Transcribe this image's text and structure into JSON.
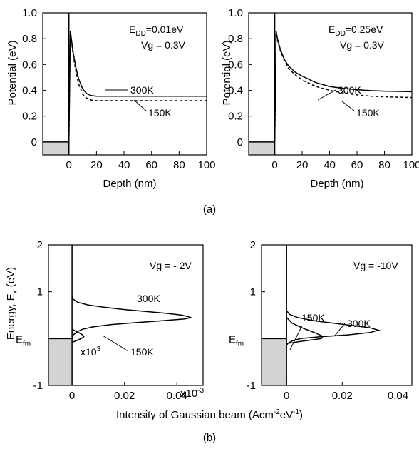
{
  "figure": {
    "caption_a": "(a)",
    "caption_b": "(b)",
    "xlabel_b": "Intensity of Gaussian beam (Acm",
    "xlabel_b_sup1": "-2",
    "xlabel_b_mid": "eV",
    "xlabel_b_sup2": "-1",
    "xlabel_b_end": ")"
  },
  "chart_data": [
    {
      "id": "a-left",
      "type": "line",
      "xlabel": "Depth (nm)",
      "ylabel": "Potential (eV)",
      "xlim": [
        -19,
        100
      ],
      "ylim": [
        -0.1,
        1.0
      ],
      "xticks": [
        0,
        20,
        40,
        60,
        80,
        100
      ],
      "yticks": [
        0,
        0.2,
        0.4,
        0.6,
        0.8,
        1.0
      ],
      "ytick_labels": [
        "0",
        "0.2",
        "0.4",
        "0.6",
        "0.8",
        "1.0"
      ],
      "annotation_1": {
        "main": "E",
        "sub": "DD",
        "rest": "=0.01eV"
      },
      "annotation_2": "Vg = 0.3V",
      "series": [
        {
          "name": "300K",
          "style": "solid",
          "x": [
            0,
            1,
            2,
            3,
            5,
            7,
            10,
            13,
            16,
            20,
            100
          ],
          "y": [
            0.0,
            0.86,
            0.78,
            0.7,
            0.58,
            0.49,
            0.41,
            0.375,
            0.36,
            0.355,
            0.355
          ]
        },
        {
          "name": "150K",
          "style": "dashed",
          "x": [
            0,
            1,
            2,
            3,
            5,
            7,
            10,
            13,
            16,
            20,
            100
          ],
          "y": [
            0.0,
            0.86,
            0.77,
            0.68,
            0.55,
            0.45,
            0.37,
            0.34,
            0.325,
            0.32,
            0.32
          ]
        }
      ]
    },
    {
      "id": "a-right",
      "type": "line",
      "xlabel": "Depth (nm)",
      "ylabel": "Potential (eV)",
      "xlim": [
        -19,
        100
      ],
      "ylim": [
        -0.1,
        1.0
      ],
      "xticks": [
        0,
        20,
        40,
        60,
        80,
        100
      ],
      "yticks": [
        0,
        0.2,
        0.4,
        0.6,
        0.8,
        1.0
      ],
      "ytick_labels": [
        "0",
        "0.2",
        "0.4",
        "0.6",
        "0.8",
        "1.0"
      ],
      "annotation_1": {
        "main": "E",
        "sub": "DD",
        "rest": "=0.25eV"
      },
      "annotation_2": "Vg = 0.3V",
      "series": [
        {
          "name": "300K",
          "style": "solid",
          "x": [
            0,
            1,
            2,
            4,
            7,
            10,
            15,
            20,
            30,
            40,
            50,
            60,
            70,
            80,
            90,
            100
          ],
          "y": [
            0.0,
            0.86,
            0.8,
            0.72,
            0.64,
            0.59,
            0.54,
            0.51,
            0.46,
            0.43,
            0.415,
            0.405,
            0.398,
            0.394,
            0.392,
            0.39
          ]
        },
        {
          "name": "150K",
          "style": "dashed",
          "x": [
            0,
            1,
            2,
            4,
            7,
            10,
            15,
            20,
            30,
            40,
            50,
            60,
            70,
            80,
            90,
            100
          ],
          "y": [
            0.0,
            0.86,
            0.79,
            0.71,
            0.63,
            0.57,
            0.52,
            0.48,
            0.43,
            0.4,
            0.38,
            0.365,
            0.355,
            0.35,
            0.347,
            0.345
          ]
        }
      ]
    },
    {
      "id": "b-left",
      "type": "line",
      "xlabel": "",
      "ylabel": "Energy, E",
      "ylabel_sub": "x",
      "ylabel_end": " (eV)",
      "xlim": [
        -0.009,
        0.05
      ],
      "ylim": [
        -1,
        2
      ],
      "xticks": [
        0,
        0.02,
        0.04
      ],
      "xtick_labels": [
        "0",
        "0.02",
        "0.04"
      ],
      "x_multiplier": "x10",
      "x_multiplier_sup": "-3",
      "yticks": [
        -1,
        1,
        2
      ],
      "ytick_labels": [
        "-1",
        "1",
        "2"
      ],
      "efm_value": 0,
      "efm": {
        "main": "E",
        "sub": "fm"
      },
      "annotation_vg": "Vg = - 2V",
      "annotation_x10": {
        "main": "x10",
        "sup": "3"
      },
      "series": [
        {
          "name": "300K",
          "style": "solid",
          "x": [
            0,
            0.0005,
            0.002,
            0.006,
            0.012,
            0.02,
            0.028,
            0.036,
            0.042,
            0.0455,
            0.043,
            0.034,
            0.024,
            0.015,
            0.008,
            0.004,
            0.002,
            0.0005,
            0
          ],
          "y": [
            0.9,
            0.84,
            0.78,
            0.72,
            0.67,
            0.62,
            0.58,
            0.54,
            0.5,
            0.45,
            0.42,
            0.38,
            0.34,
            0.3,
            0.25,
            0.2,
            0.15,
            0.08,
            0.0
          ]
        },
        {
          "name": "150K",
          "style": "solid",
          "x": [
            0,
            0.001,
            0.0025,
            0.004,
            0.0045,
            0.0035,
            0.0018,
            0.0005,
            0
          ],
          "y": [
            0.2,
            0.17,
            0.13,
            0.08,
            0.04,
            0.0,
            -0.04,
            -0.07,
            -0.1
          ]
        }
      ]
    },
    {
      "id": "b-right",
      "type": "line",
      "xlabel": "",
      "ylabel": "",
      "xlim": [
        -0.009,
        0.045
      ],
      "ylim": [
        -1,
        2
      ],
      "xticks": [
        0,
        0.02,
        0.04
      ],
      "xtick_labels": [
        "0",
        "0.02",
        "0.04"
      ],
      "yticks": [
        -1,
        1,
        2
      ],
      "ytick_labels": [
        "-1",
        "1",
        "2"
      ],
      "efm_value": 0,
      "efm": {
        "main": "E",
        "sub": "fm"
      },
      "annotation_vg": "Vg = -10V",
      "series": [
        {
          "name": "300K",
          "style": "solid",
          "x": [
            0,
            0.001,
            0.004,
            0.01,
            0.018,
            0.025,
            0.03,
            0.033,
            0.03,
            0.022,
            0.012,
            0.005,
            0.002,
            0.0005,
            0
          ],
          "y": [
            0.6,
            0.52,
            0.45,
            0.38,
            0.32,
            0.27,
            0.23,
            0.18,
            0.13,
            0.08,
            0.04,
            0.0,
            -0.05,
            -0.1,
            -0.15
          ]
        },
        {
          "name": "150K",
          "style": "solid",
          "x": [
            0,
            0.002,
            0.006,
            0.01,
            0.013,
            0.0125,
            0.009,
            0.005,
            0.002,
            0
          ],
          "y": [
            0.45,
            0.33,
            0.22,
            0.13,
            0.05,
            0.0,
            -0.03,
            -0.06,
            -0.09,
            -0.1
          ]
        }
      ]
    }
  ]
}
